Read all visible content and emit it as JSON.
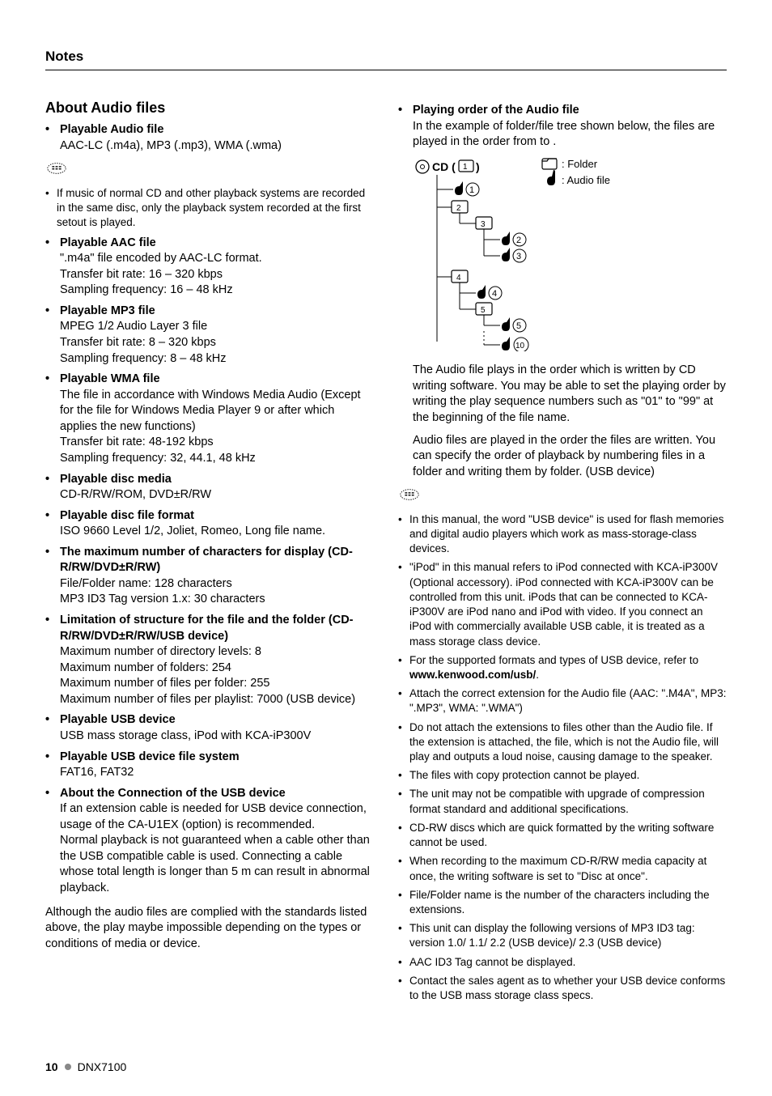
{
  "header": {
    "title": "Notes"
  },
  "colors": {
    "text": "#000000",
    "background": "#ffffff",
    "rule": "#000000",
    "footer_dot": "#888888"
  },
  "typography": {
    "body_fontsize_pt": 11,
    "section_title_fontsize_pt": 13.5,
    "small_fontsize_pt": 10,
    "header_fontsize_pt": 12.5,
    "font_family": "Myriad Pro / sans-serif"
  },
  "left": {
    "section_title": "About Audio files",
    "items": [
      {
        "title": "Playable Audio file",
        "body": [
          "AAC-LC (.m4a), MP3 (.mp3), WMA (.wma)"
        ]
      },
      {
        "title": "Playable AAC file",
        "body": [
          "\".m4a\" file encoded by AAC-LC format.",
          "Transfer bit rate: 16 – 320 kbps",
          "Sampling frequency: 16 – 48 kHz"
        ]
      },
      {
        "title": "Playable MP3 file",
        "body": [
          "MPEG 1/2 Audio Layer 3 file",
          "Transfer bit rate: 8 – 320 kbps",
          "Sampling frequency: 8 – 48 kHz"
        ]
      },
      {
        "title": "Playable WMA file",
        "body": [
          "The file in accordance with Windows Media Audio (Except for the file for Windows Media Player 9 or after which applies the new functions)",
          "Transfer bit rate: 48-192 kbps",
          "Sampling frequency: 32, 44.1, 48 kHz"
        ]
      },
      {
        "title": "Playable disc media",
        "body": [
          "CD-R/RW/ROM, DVD±R/RW"
        ]
      },
      {
        "title": "Playable disc file format",
        "body": [
          "ISO 9660 Level 1/2, Joliet, Romeo, Long file name."
        ]
      },
      {
        "title": "The maximum number of characters for display (CD-R/RW/DVD±R/RW)",
        "body": [
          "File/Folder name: 128 characters",
          "MP3 ID3 Tag version 1.x: 30 characters"
        ]
      },
      {
        "title": "Limitation of structure for the file and the folder (CD-R/RW/DVD±R/RW/USB device)",
        "body": [
          "Maximum number of directory levels: 8",
          "Maximum number of folders: 254",
          "Maximum number of files per folder: 255",
          "Maximum number of files per playlist: 7000 (USB device)"
        ]
      },
      {
        "title": "Playable USB device",
        "body": [
          "USB mass storage class, iPod with KCA-iP300V"
        ]
      },
      {
        "title": "Playable USB device file system",
        "body": [
          "FAT16, FAT32"
        ]
      },
      {
        "title": "About the Connection of the USB device",
        "body": [
          "If an extension cable is needed for USB device connection, usage of the CA-U1EX (option) is recommended.",
          "Normal playback is not guaranteed when a cable other than the USB compatible cable is used. Connecting a cable whose total length is longer than 5 m can result in abnormal playback."
        ]
      }
    ],
    "note_after_first": [
      "If music of normal CD and other playback systems are recorded in the same disc, only the playback system recorded at the first setout is played."
    ],
    "tail_paragraph": "Although the audio files are complied with the standards listed above, the play maybe impossible depending on the types or conditions of media or device."
  },
  "right": {
    "play_order": {
      "title": "Playing order of the Audio file",
      "intro": "In the example of folder/file tree shown below, the files are played in the order from      to      .",
      "legend_folder": ": Folder",
      "legend_audio": ": Audio file",
      "cd_label": "CD (",
      "tree": {
        "folders": [
          "1",
          "2",
          "3",
          "4",
          "5"
        ],
        "files_circled": [
          "①",
          "②",
          "③",
          "④",
          "⑤",
          "⑩"
        ]
      },
      "para1": "The Audio file plays in the order which is written by CD writing software. You may be able to set the playing order by writing the play sequence numbers such as \"01\" to \"99\" at the beginning of the file name.",
      "para2": "Audio files are played in the order the files are written. You can specify the order of playback by numbering files in a folder and writing them by folder. (USB device)"
    },
    "small_notes": [
      "In this manual, the word \"USB device\" is used for flash memories and digital audio players which work as mass-storage-class devices.",
      "\"iPod\" in this manual refers to iPod connected with KCA-iP300V (Optional accessory). iPod connected with KCA-iP300V can be controlled from this unit. iPods that can be connected to KCA-iP300V are iPod nano and iPod with video. If you connect an iPod with commercially available USB cable, it is treated as a mass storage class device.",
      "For the supported formats and types of USB device, refer to ",
      "Attach the correct extension for the Audio file (AAC: \".M4A\", MP3: \".MP3\", WMA: \".WMA\")",
      "Do not attach the extensions to files other than the Audio file. If the extension is attached, the file, which is not the Audio file, will play and outputs a loud noise, causing damage to the speaker.",
      "The files with copy protection cannot be played.",
      "The unit may not be compatible with upgrade of compression format standard and additional specifications.",
      "CD-RW discs which are quick formatted by the writing software cannot be used.",
      "When recording to the maximum CD-R/RW media capacity at once, the writing software is set to \"Disc at once\".",
      "File/Folder name is the number of the characters including the extensions.",
      "This unit can display the following versions of MP3 ID3 tag: version 1.0/ 1.1/ 2.2 (USB device)/ 2.3 (USB device)",
      "AAC ID3 Tag cannot be displayed.",
      "Contact the sales agent as to whether your USB device conforms to the USB mass storage class specs."
    ],
    "usb_link": "www.kenwood.com/usb/"
  },
  "footer": {
    "page": "10",
    "model": "DNX7100"
  }
}
